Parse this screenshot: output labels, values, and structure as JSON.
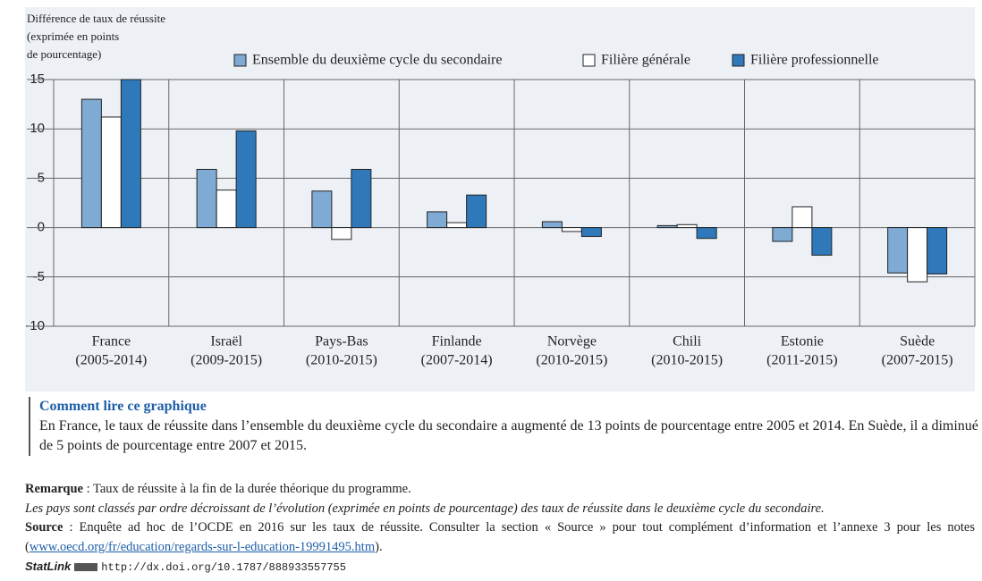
{
  "chart_data": {
    "type": "bar",
    "y_title": [
      "Différence de taux de réussite",
      "(exprimée en points",
      "de pourcentage)"
    ],
    "categories": [
      [
        "France",
        "(2005-2014)"
      ],
      [
        "Israël",
        "(2009-2015)"
      ],
      [
        "Pays-Bas",
        "(2010-2015)"
      ],
      [
        "Finlande",
        "(2007-2014)"
      ],
      [
        "Norvège",
        "(2010-2015)"
      ],
      [
        "Chili",
        "(2010-2015)"
      ],
      [
        "Estonie",
        "(2011-2015)"
      ],
      [
        "Suède",
        "(2007-2015)"
      ]
    ],
    "series": [
      {
        "name": "Ensemble du deuxième cycle du secondaire",
        "color": "#7eaad4",
        "values": [
          13,
          5.9,
          3.7,
          1.6,
          0.6,
          0.2,
          -1.4,
          -4.6
        ]
      },
      {
        "name": "Filière générale",
        "color": "#ffffff",
        "values": [
          11.2,
          3.8,
          -1.2,
          0.5,
          -0.4,
          0.3,
          2.1,
          -5.5
        ]
      },
      {
        "name": "Filière professionnelle",
        "color": "#2f78ba",
        "values": [
          15,
          9.8,
          5.9,
          3.3,
          -0.9,
          -1.1,
          -2.8,
          -4.7
        ]
      }
    ],
    "ylim": [
      -10,
      15
    ],
    "yticks": [
      -10,
      -5,
      0,
      5,
      10,
      15
    ],
    "grid": true
  },
  "notes": {
    "how_title": "Comment lire ce graphique",
    "how_text": "En France, le taux de réussite dans l’ensemble du deuxième cycle du secondaire a augmenté de 13 points de pourcentage entre 2005 et 2014. En Suède, il a diminué de 5 points de pourcentage entre 2007 et 2015.",
    "remark_label": "Remarque",
    "remark_text": " : Taux de réussite à la fin de la durée théorique du programme.",
    "order_note": "Les pays sont classés par ordre décroissant de l’évolution (exprimée en points de pourcentage) des taux de réussite dans le deuxième cycle du secondaire.",
    "source_label": "Source",
    "source_text": " : Enquête ad hoc de l’OCDE en 2016 sur les taux de réussite. Consulter la section « Source » pour tout complément d’information et l’annexe 3 pour les notes (",
    "source_link": "www.oecd.org/fr/education/regards-sur-l-education-19991495.htm",
    "source_end": ").",
    "statlink_label": "StatLink",
    "statlink_url": "http://dx.doi.org/10.1787/888933557755"
  }
}
